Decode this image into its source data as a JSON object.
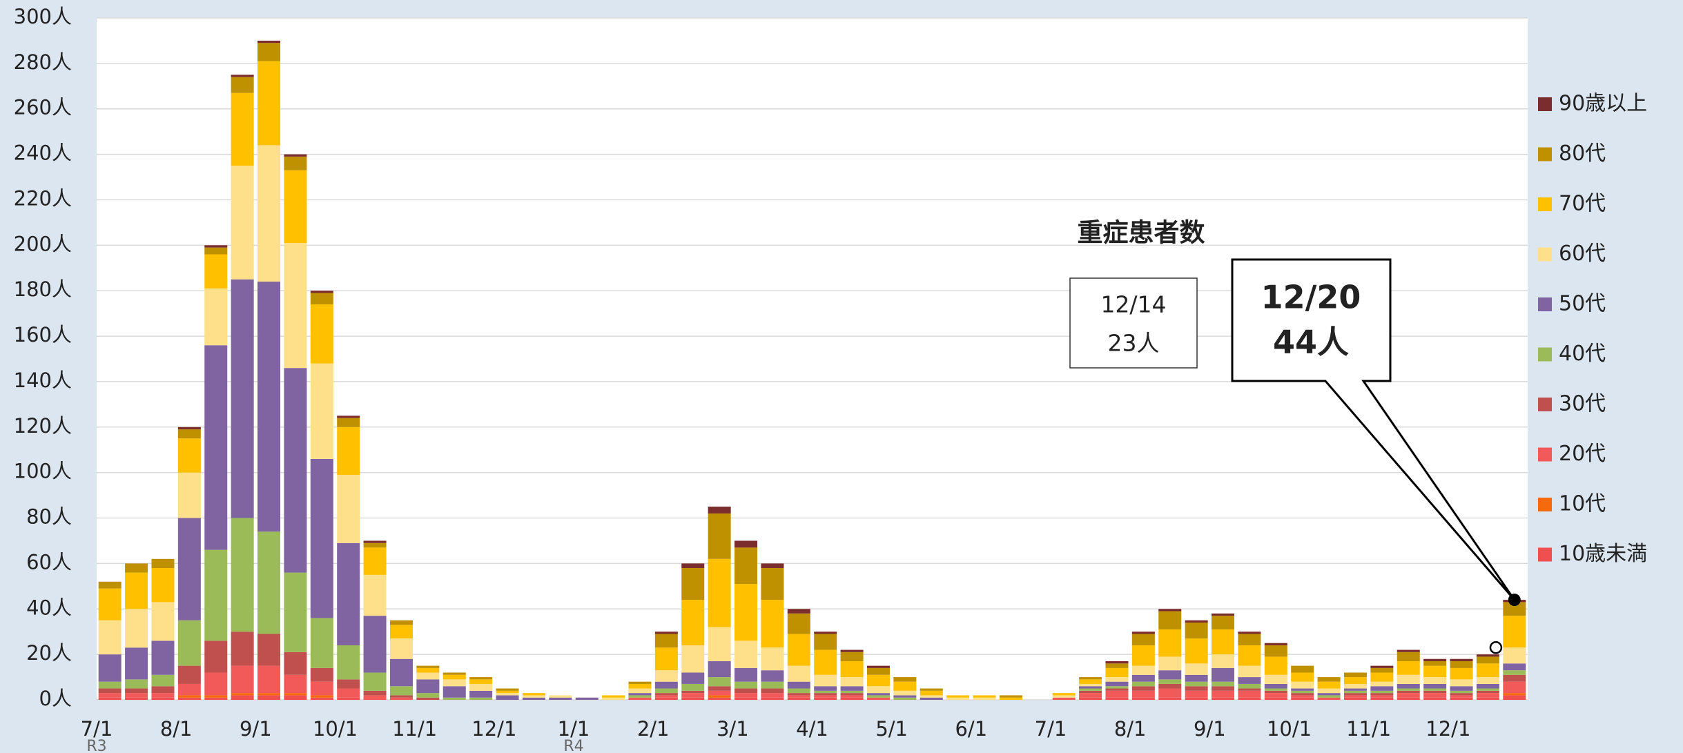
{
  "chart_data": {
    "type": "stacked_bar",
    "annotations": {
      "title": "重症患者数",
      "previous": {
        "date": "12/14",
        "label": "23人",
        "value": 23
      },
      "latest": {
        "date": "12/20",
        "label": "44人",
        "value": 44
      }
    },
    "categories": [
      "7/1",
      null,
      null,
      "8/1",
      null,
      null,
      "9/1",
      null,
      null,
      "10/1",
      null,
      null,
      "11/1",
      null,
      null,
      "12/1",
      null,
      null,
      "1/1",
      null,
      null,
      "2/1",
      null,
      null,
      "3/1",
      null,
      null,
      "4/1",
      null,
      null,
      "5/1",
      null,
      null,
      "6/1",
      null,
      null,
      "7/1",
      null,
      null,
      "8/1",
      null,
      null,
      "9/1",
      null,
      null,
      "10/1",
      null,
      null,
      "11/1",
      null,
      null,
      "12/1",
      null,
      null
    ],
    "category_sublabels": [
      "R3",
      null,
      null,
      null,
      null,
      null,
      null,
      null,
      null,
      null,
      null,
      null,
      null,
      null,
      null,
      null,
      null,
      null,
      "R4",
      null,
      null,
      null,
      null,
      null,
      null,
      null,
      null,
      null,
      null,
      null,
      null,
      null,
      null,
      null,
      null,
      null,
      null,
      null,
      null,
      null,
      null,
      null,
      null,
      null,
      null,
      null,
      null,
      null,
      null,
      null,
      null,
      null,
      null,
      null
    ],
    "series": [
      {
        "name": "10歳未満",
        "color": "#f04f4f",
        "values": [
          1,
          1,
          1,
          1,
          1,
          2,
          2,
          2,
          1,
          1,
          0,
          0,
          0,
          0,
          0,
          0,
          0,
          0,
          0,
          0,
          0,
          1,
          1,
          1,
          1,
          1,
          1,
          1,
          1,
          0,
          0,
          0,
          0,
          0,
          0,
          0,
          0,
          1,
          1,
          1,
          1,
          1,
          1,
          1,
          1,
          1,
          0,
          1,
          1,
          1,
          1,
          1,
          1,
          2
        ]
      },
      {
        "name": "10代",
        "color": "#f46a0c",
        "values": [
          0,
          0,
          0,
          1,
          1,
          1,
          1,
          1,
          1,
          0,
          0,
          0,
          0,
          0,
          0,
          0,
          0,
          0,
          0,
          0,
          0,
          0,
          0,
          1,
          0,
          0,
          0,
          0,
          0,
          0,
          0,
          0,
          0,
          0,
          0,
          0,
          0,
          0,
          0,
          0,
          0,
          0,
          0,
          0,
          0,
          0,
          0,
          0,
          0,
          0,
          0,
          0,
          0,
          1
        ]
      },
      {
        "name": "20代",
        "color": "#f25a5a",
        "values": [
          2,
          2,
          2,
          5,
          10,
          12,
          12,
          8,
          6,
          4,
          2,
          1,
          0,
          0,
          0,
          0,
          0,
          0,
          0,
          0,
          1,
          1,
          2,
          2,
          2,
          2,
          1,
          1,
          1,
          1,
          0,
          0,
          0,
          0,
          0,
          0,
          1,
          2,
          3,
          3,
          4,
          3,
          3,
          3,
          2,
          1,
          1,
          1,
          1,
          2,
          2,
          1,
          2,
          5
        ]
      },
      {
        "name": "30代",
        "color": "#c0504d",
        "values": [
          2,
          2,
          3,
          8,
          14,
          15,
          14,
          10,
          6,
          4,
          2,
          1,
          1,
          0,
          0,
          0,
          0,
          0,
          0,
          0,
          0,
          1,
          1,
          2,
          2,
          2,
          1,
          1,
          1,
          0,
          0,
          0,
          0,
          0,
          0,
          0,
          0,
          1,
          1,
          2,
          2,
          2,
          2,
          1,
          1,
          1,
          0,
          1,
          1,
          1,
          1,
          1,
          1,
          3
        ]
      },
      {
        "name": "40代",
        "color": "#9bbb59",
        "values": [
          3,
          4,
          5,
          20,
          40,
          50,
          45,
          35,
          22,
          15,
          8,
          4,
          2,
          1,
          1,
          0,
          0,
          0,
          0,
          0,
          1,
          2,
          3,
          4,
          3,
          3,
          2,
          1,
          1,
          1,
          1,
          0,
          0,
          0,
          0,
          0,
          0,
          1,
          1,
          2,
          2,
          2,
          2,
          2,
          1,
          1,
          1,
          1,
          1,
          1,
          1,
          1,
          1,
          2
        ]
      },
      {
        "name": "50代",
        "color": "#8064a2",
        "values": [
          12,
          14,
          15,
          45,
          90,
          105,
          110,
          90,
          70,
          45,
          25,
          12,
          6,
          5,
          3,
          2,
          1,
          1,
          1,
          0,
          1,
          3,
          5,
          7,
          6,
          5,
          3,
          2,
          2,
          1,
          1,
          1,
          0,
          0,
          0,
          0,
          0,
          1,
          2,
          3,
          4,
          3,
          6,
          3,
          2,
          1,
          1,
          1,
          2,
          2,
          2,
          2,
          2,
          3
        ]
      },
      {
        "name": "60代",
        "color": "#ffe08a",
        "values": [
          15,
          17,
          17,
          20,
          25,
          50,
          60,
          55,
          42,
          30,
          18,
          9,
          3,
          3,
          3,
          1,
          1,
          1,
          0,
          1,
          2,
          5,
          12,
          15,
          12,
          10,
          7,
          5,
          4,
          3,
          2,
          1,
          1,
          1,
          0,
          0,
          1,
          1,
          2,
          4,
          6,
          5,
          6,
          5,
          4,
          3,
          2,
          2,
          2,
          4,
          3,
          3,
          3,
          7
        ]
      },
      {
        "name": "70代",
        "color": "#ffc000",
        "values": [
          14,
          16,
          15,
          15,
          15,
          32,
          37,
          32,
          26,
          21,
          12,
          6,
          2,
          2,
          2,
          1,
          1,
          0,
          0,
          1,
          2,
          10,
          20,
          30,
          25,
          21,
          14,
          11,
          7,
          5,
          4,
          2,
          1,
          1,
          1,
          0,
          1,
          2,
          4,
          9,
          12,
          11,
          11,
          9,
          8,
          4,
          3,
          3,
          4,
          6,
          5,
          5,
          6,
          14
        ]
      },
      {
        "name": "80代",
        "color": "#bf9000",
        "values": [
          3,
          4,
          4,
          4,
          3,
          7,
          8,
          6,
          5,
          4,
          2,
          2,
          1,
          1,
          1,
          1,
          0,
          0,
          0,
          0,
          1,
          6,
          14,
          20,
          16,
          14,
          9,
          7,
          4,
          3,
          2,
          1,
          0,
          0,
          1,
          0,
          0,
          1,
          2,
          5,
          8,
          7,
          6,
          5,
          5,
          3,
          2,
          2,
          2,
          4,
          2,
          3,
          3,
          6
        ]
      },
      {
        "name": "90歳以上",
        "color": "#7b2c2c",
        "values": [
          0,
          0,
          0,
          1,
          1,
          1,
          1,
          1,
          1,
          1,
          1,
          0,
          0,
          0,
          0,
          0,
          0,
          0,
          0,
          0,
          0,
          1,
          2,
          3,
          3,
          2,
          2,
          1,
          1,
          1,
          0,
          0,
          0,
          0,
          0,
          0,
          0,
          0,
          1,
          1,
          1,
          1,
          1,
          1,
          1,
          0,
          0,
          0,
          1,
          1,
          1,
          1,
          1,
          1
        ]
      }
    ],
    "ylim": [
      0,
      300
    ],
    "yticks": [
      {
        "value": 0,
        "label": "0人"
      },
      {
        "value": 20,
        "label": "20人"
      },
      {
        "value": 40,
        "label": "40人"
      },
      {
        "value": 60,
        "label": "60人"
      },
      {
        "value": 80,
        "label": "80人"
      },
      {
        "value": 100,
        "label": "100人"
      },
      {
        "value": 120,
        "label": "120人"
      },
      {
        "value": 140,
        "label": "140人"
      },
      {
        "value": 160,
        "label": "160人"
      },
      {
        "value": 180,
        "label": "180人"
      },
      {
        "value": 200,
        "label": "200人"
      },
      {
        "value": 220,
        "label": "220人"
      },
      {
        "value": 240,
        "label": "240人"
      },
      {
        "value": 260,
        "label": "260人"
      },
      {
        "value": 280,
        "label": "280人"
      },
      {
        "value": 300,
        "label": "300人"
      }
    ],
    "grid": true,
    "legend_position": "right"
  }
}
